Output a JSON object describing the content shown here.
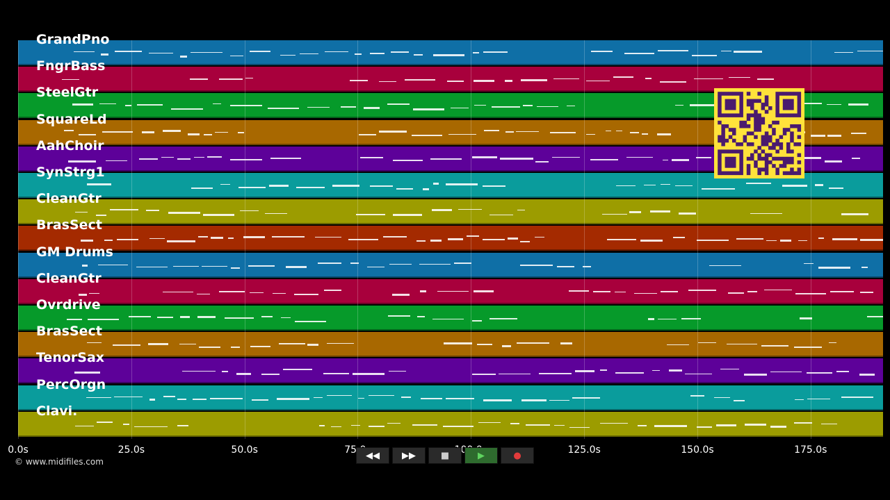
{
  "tracks": [
    {
      "name": "GrandPno",
      "color": "#0f6fa6"
    },
    {
      "name": "FngrBass",
      "color": "#a8003c"
    },
    {
      "name": "SteelGtr",
      "color": "#069a2a"
    },
    {
      "name": "SquareLd",
      "color": "#a86800"
    },
    {
      "name": "AahChoir",
      "color": "#5d0199"
    },
    {
      "name": "SynStrg1",
      "color": "#0a9c9c"
    },
    {
      "name": "CleanGtr",
      "color": "#9c9c00"
    },
    {
      "name": "BrasSect",
      "color": "#a42a00"
    },
    {
      "name": "GM Drums",
      "color": "#0f6fa6"
    },
    {
      "name": "CleanGtr",
      "color": "#a8003c"
    },
    {
      "name": "Ovrdrive",
      "color": "#069a2a"
    },
    {
      "name": "BrasSect",
      "color": "#a86800"
    },
    {
      "name": "TenorSax",
      "color": "#5d0199"
    },
    {
      "name": "PercOrgn",
      "color": "#0a9c9c"
    },
    {
      "name": "Clavi.",
      "color": "#9c9c00"
    }
  ],
  "timeline": {
    "ticks": [
      "0.0s",
      "25.0s",
      "50.0s",
      "75.0s",
      "100.0s",
      "125.0s",
      "150.0s",
      "175.0s"
    ],
    "tick_values": [
      0,
      25,
      50,
      75,
      100,
      125,
      150,
      175
    ],
    "duration_seconds": 191
  },
  "transport": {
    "rewind": "◀◀",
    "fast_forward": "▶▶",
    "stop": "■",
    "play": "▶",
    "record": "●"
  },
  "copyright": "© www.midifiles.com"
}
